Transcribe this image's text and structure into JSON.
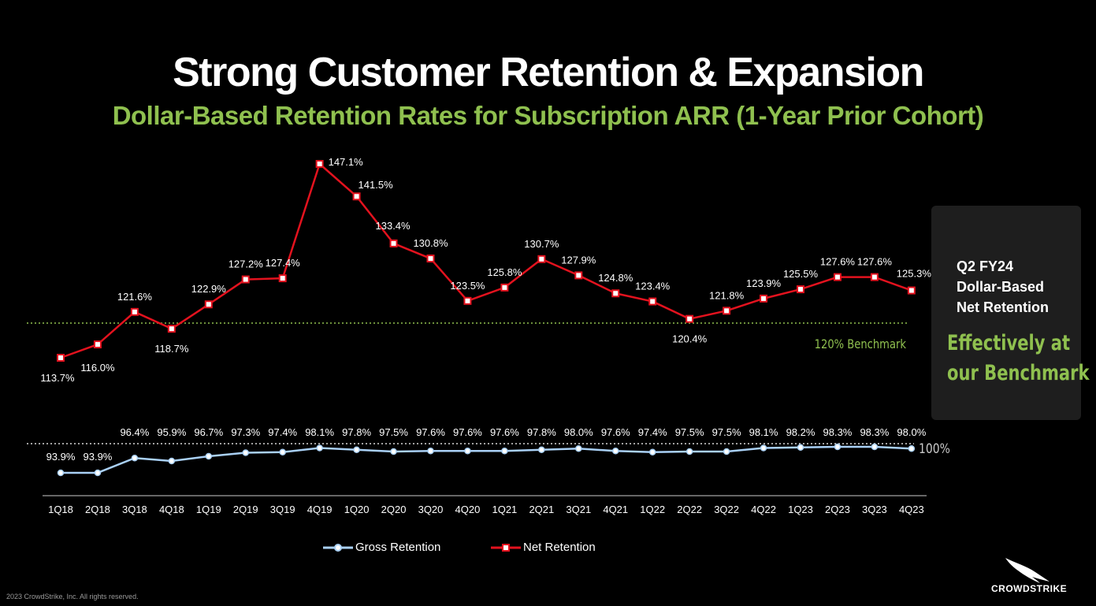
{
  "slide": {
    "title": "Strong Customer Retention & Expansion",
    "subtitle": "Dollar-Based Retention Rates for Subscription ARR (1-Year Prior Cohort)",
    "copyright": "2023 CrowdStrike, Inc. All rights reserved.",
    "brand": "CROWDSTRIKE"
  },
  "callout": {
    "heading_lines": [
      "Q2 FY24",
      "Dollar-Based",
      "Net Retention"
    ],
    "highlight_lines": [
      "Effectively at",
      "our Benchmark"
    ]
  },
  "colors": {
    "background": "#000000",
    "net": "#e3121e",
    "gross": "#a9d0f5",
    "benchmark": "#8fc04f",
    "title": "#ffffff",
    "subtitle": "#8fc04f"
  },
  "chart_data": {
    "type": "line",
    "categories": [
      "1Q18",
      "2Q18",
      "3Q18",
      "4Q18",
      "1Q19",
      "2Q19",
      "3Q19",
      "4Q19",
      "1Q20",
      "2Q20",
      "3Q20",
      "4Q20",
      "1Q21",
      "2Q21",
      "3Q21",
      "4Q21",
      "1Q22",
      "2Q22",
      "3Q22",
      "4Q22",
      "1Q23",
      "2Q23",
      "3Q23",
      "4Q23"
    ],
    "series": [
      {
        "name": "Net Retention",
        "values": [
          113.7,
          116.0,
          121.6,
          118.7,
          122.9,
          127.2,
          127.4,
          147.1,
          141.5,
          133.4,
          130.8,
          123.5,
          125.8,
          130.7,
          127.9,
          124.8,
          123.4,
          120.4,
          121.8,
          123.9,
          125.5,
          127.6,
          127.6,
          125.3
        ],
        "labels": [
          "113.7%",
          "116.0%",
          "121.6%",
          "118.7%",
          "122.9%",
          "127.2%",
          "127.4%",
          "147.1%",
          "141.5%",
          "133.4%",
          "130.8%",
          "123.5%",
          "125.8%",
          "130.7%",
          "127.9%",
          "124.8%",
          "123.4%",
          "120.4%",
          "121.8%",
          "123.9%",
          "125.5%",
          "127.6%",
          "127.6%",
          "125.3%"
        ]
      },
      {
        "name": "Gross Retention",
        "values": [
          93.9,
          93.9,
          96.4,
          95.9,
          96.7,
          97.3,
          97.4,
          98.1,
          97.8,
          97.5,
          97.6,
          97.6,
          97.6,
          97.8,
          98.0,
          97.6,
          97.4,
          97.5,
          97.5,
          98.1,
          98.2,
          98.3,
          98.3,
          98.0
        ],
        "labels": [
          "93.9%",
          "93.9%",
          "96.4%",
          "95.9%",
          "96.7%",
          "97.3%",
          "97.4%",
          "98.1%",
          "97.8%",
          "97.5%",
          "97.6%",
          "97.6%",
          "97.6%",
          "97.8%",
          "98.0%",
          "97.6%",
          "97.4%",
          "97.5%",
          "97.5%",
          "98.1%",
          "98.2%",
          "98.3%",
          "98.3%",
          "98.0%"
        ]
      }
    ],
    "benchmarks": [
      {
        "value": 120,
        "label": "120% Benchmark"
      },
      {
        "value": 100,
        "label": "100%"
      }
    ],
    "grid": false
  }
}
